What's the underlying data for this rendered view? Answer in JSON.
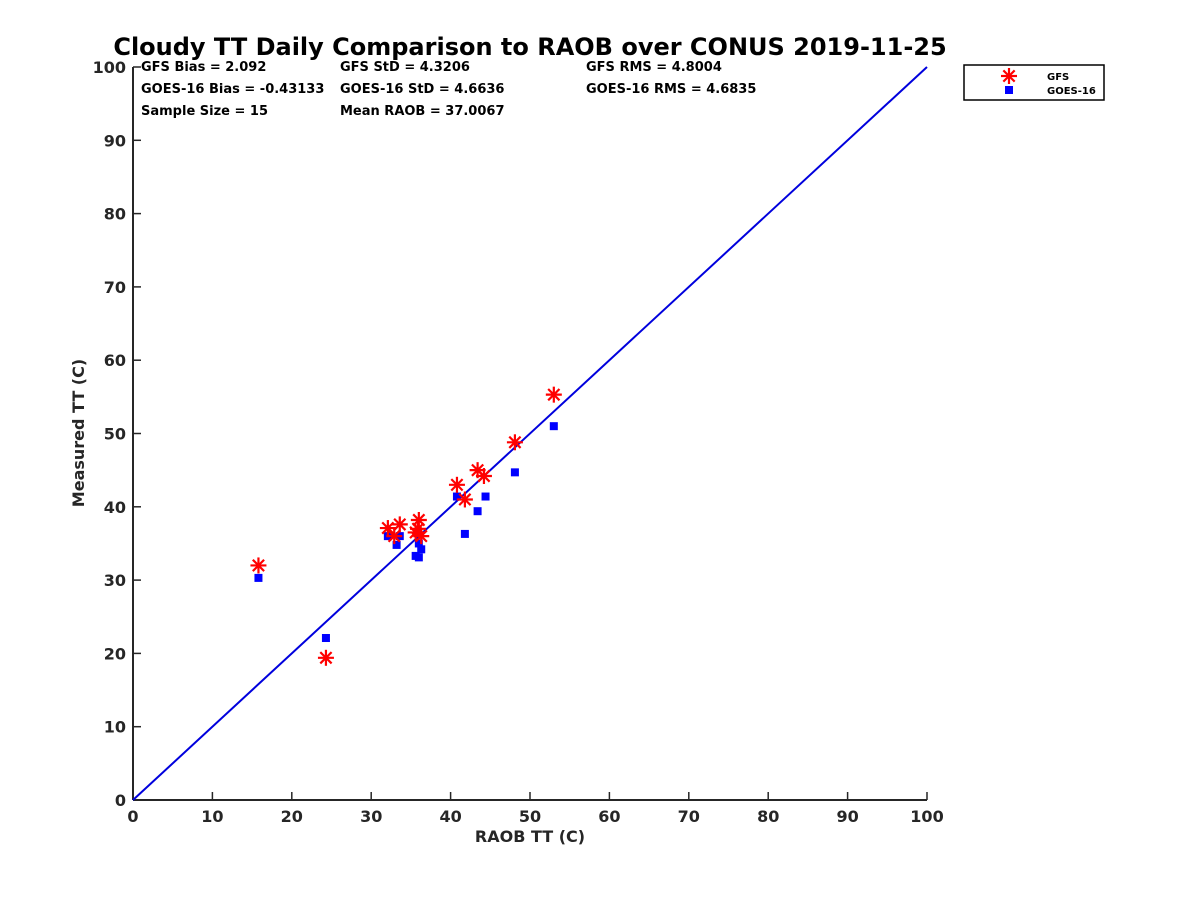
{
  "chart_data": {
    "type": "scatter",
    "title": "Cloudy TT Daily Comparison to RAOB over CONUS 2019-11-25",
    "xlabel": "RAOB TT (C)",
    "ylabel": "Measured TT (C)",
    "xlim": [
      0,
      100
    ],
    "ylim": [
      0,
      100
    ],
    "xticks": [
      "0",
      "10",
      "20",
      "30",
      "40",
      "50",
      "60",
      "70",
      "80",
      "90",
      "100"
    ],
    "yticks": [
      "0",
      "10",
      "20",
      "30",
      "40",
      "50",
      "60",
      "70",
      "80",
      "90",
      "100"
    ],
    "grid": false,
    "legend_position": "outside top-right",
    "reference_line": {
      "x": [
        0,
        100
      ],
      "y": [
        0,
        100
      ],
      "color": "#0000dd"
    },
    "stats": [
      [
        "GFS Bias = 2.092",
        "GFS StD = 4.3206",
        "GFS RMS = 4.8004"
      ],
      [
        "GOES-16 Bias = -0.43133",
        "GOES-16 StD = 4.6636",
        "GOES-16 RMS = 4.6835"
      ],
      [
        "Sample Size = 15",
        "Mean RAOB = 37.0067",
        ""
      ]
    ],
    "series": [
      {
        "name": "GFS",
        "marker": "asterisk",
        "color": "#ff0000",
        "x": [
          15.8,
          24.3,
          32.1,
          32.9,
          33.6,
          35.6,
          36.0,
          35.9,
          36.3,
          40.8,
          41.8,
          43.4,
          44.2,
          48.1,
          53.0
        ],
        "y": [
          32.0,
          19.4,
          37.1,
          36.0,
          37.6,
          36.5,
          38.2,
          37.0,
          36.0,
          43.0,
          41.0,
          45.0,
          44.2,
          48.8,
          55.3
        ]
      },
      {
        "name": "GOES-16",
        "marker": "square",
        "color": "#0000ff",
        "x": [
          15.8,
          24.3,
          32.1,
          33.2,
          33.6,
          35.6,
          36.0,
          36.0,
          36.3,
          40.8,
          41.8,
          43.4,
          44.4,
          48.1,
          53.0
        ],
        "y": [
          30.3,
          22.1,
          36.0,
          34.8,
          36.0,
          33.3,
          35.0,
          33.1,
          34.2,
          41.4,
          36.3,
          39.4,
          41.4,
          44.7,
          51.0
        ]
      }
    ]
  }
}
